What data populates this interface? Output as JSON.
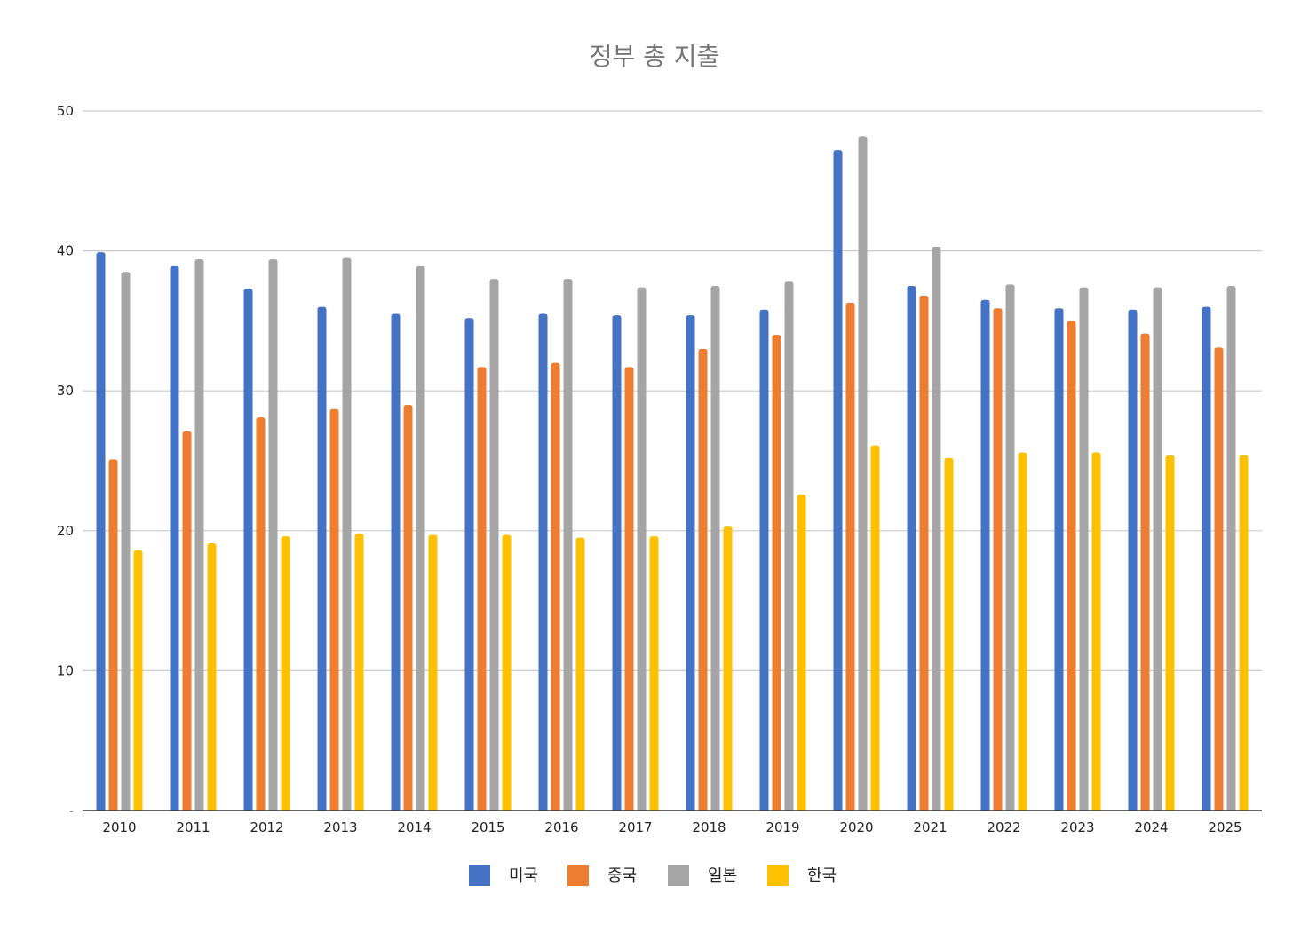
{
  "chart_data": {
    "type": "bar",
    "title": "정부 총 지출",
    "xlabel": "",
    "ylabel": "",
    "ylim": [
      0,
      50
    ],
    "y_ticks": [
      {
        "value": 0,
        "label": "-"
      },
      {
        "value": 10,
        "label": "10"
      },
      {
        "value": 20,
        "label": "20"
      },
      {
        "value": 30,
        "label": "30"
      },
      {
        "value": 40,
        "label": "40"
      },
      {
        "value": 50,
        "label": "50"
      }
    ],
    "grid": true,
    "legend_position": "bottom",
    "categories": [
      "2010",
      "2011",
      "2012",
      "2013",
      "2014",
      "2015",
      "2016",
      "2017",
      "2018",
      "2019",
      "2020",
      "2021",
      "2022",
      "2023",
      "2024",
      "2025"
    ],
    "series": [
      {
        "name": "미국",
        "color": "#4472C4",
        "values": [
          39.9,
          38.9,
          37.3,
          36.0,
          35.5,
          35.2,
          35.5,
          35.4,
          35.4,
          35.8,
          47.2,
          37.5,
          36.5,
          35.9,
          35.8,
          36.0
        ]
      },
      {
        "name": "중국",
        "color": "#ED7D31",
        "values": [
          25.1,
          27.1,
          28.1,
          28.7,
          29.0,
          31.7,
          32.0,
          31.7,
          33.0,
          34.0,
          36.3,
          36.8,
          35.9,
          35.0,
          34.1,
          33.1
        ]
      },
      {
        "name": "일본",
        "color": "#A5A5A5",
        "values": [
          38.5,
          39.4,
          39.4,
          39.5,
          38.9,
          38.0,
          38.0,
          37.4,
          37.5,
          37.8,
          48.2,
          40.3,
          37.6,
          37.4,
          37.4,
          37.5
        ]
      },
      {
        "name": "한국",
        "color": "#FFC000",
        "values": [
          18.6,
          19.1,
          19.6,
          19.8,
          19.7,
          19.7,
          19.5,
          19.6,
          20.3,
          22.6,
          26.1,
          25.2,
          25.6,
          25.6,
          25.4,
          25.4
        ]
      }
    ]
  }
}
